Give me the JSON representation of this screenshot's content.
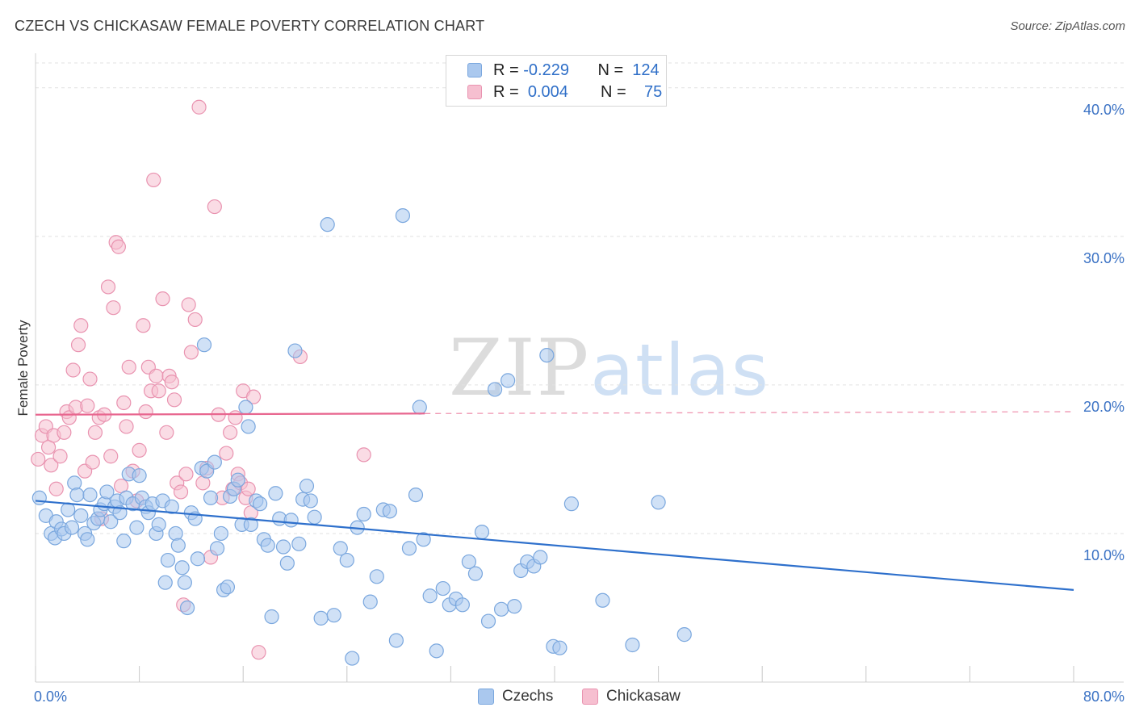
{
  "header": {
    "title": "CZECH VS CHICKASAW FEMALE POVERTY CORRELATION CHART",
    "source": "Source: ZipAtlas.com"
  },
  "watermark": {
    "zip": "ZIP",
    "atlas": "atlas"
  },
  "legend": {
    "rows": [
      {
        "r_label": "R =",
        "r_value": "-0.229",
        "n_label": "N =",
        "n_value": "124"
      },
      {
        "r_label": "R =",
        "r_value": "0.004",
        "n_label": "N =",
        "n_value": "75"
      }
    ]
  },
  "bottom_legend": {
    "czechs": "Czechs",
    "chickasaw": "Chickasaw"
  },
  "colors": {
    "czech_fill": "#aac8ee",
    "czech_stroke": "#7aa7de",
    "czech_line": "#2e70cc",
    "chickasaw_fill": "#f6bfd0",
    "chickasaw_stroke": "#e993b0",
    "chickasaw_line": "#e8668f",
    "tick_text": "#3b72c4",
    "grid": "#e2e2e2"
  },
  "chart_data": {
    "type": "scatter",
    "title": "CZECH VS CHICKASAW FEMALE POVERTY CORRELATION CHART",
    "xlabel": "",
    "ylabel": "Female Poverty",
    "xlim": [
      0,
      80
    ],
    "ylim": [
      0,
      42
    ],
    "x_tick_labels": [
      "0.0%",
      "80.0%"
    ],
    "y_ticks": [
      10,
      20,
      30,
      40
    ],
    "y_tick_labels": [
      "10.0%",
      "20.0%",
      "30.0%",
      "40.0%"
    ],
    "grid": true,
    "legend_position": "top-center",
    "series": [
      {
        "name": "Czechs",
        "r": -0.229,
        "n": 124,
        "trend": {
          "x": [
            0,
            80
          ],
          "y": [
            12.2,
            6.2
          ],
          "dashed_from": null
        },
        "points": [
          [
            0.3,
            12.4
          ],
          [
            0.8,
            11.2
          ],
          [
            1.2,
            10.0
          ],
          [
            1.6,
            10.8
          ],
          [
            1.5,
            9.7
          ],
          [
            2.0,
            10.3
          ],
          [
            2.2,
            10.0
          ],
          [
            2.5,
            11.6
          ],
          [
            2.8,
            10.4
          ],
          [
            3.0,
            13.4
          ],
          [
            3.2,
            12.6
          ],
          [
            3.5,
            11.2
          ],
          [
            3.8,
            10.0
          ],
          [
            4.0,
            9.6
          ],
          [
            4.2,
            12.6
          ],
          [
            4.5,
            10.7
          ],
          [
            4.8,
            11.0
          ],
          [
            5.0,
            11.6
          ],
          [
            5.3,
            12.0
          ],
          [
            5.5,
            12.8
          ],
          [
            5.8,
            10.8
          ],
          [
            6.1,
            11.8
          ],
          [
            6.3,
            12.2
          ],
          [
            6.5,
            11.4
          ],
          [
            6.8,
            9.5
          ],
          [
            7.0,
            12.4
          ],
          [
            7.2,
            14.0
          ],
          [
            7.5,
            12.0
          ],
          [
            7.8,
            10.4
          ],
          [
            8.0,
            13.9
          ],
          [
            8.2,
            12.4
          ],
          [
            8.5,
            11.8
          ],
          [
            8.7,
            11.4
          ],
          [
            9.0,
            12.0
          ],
          [
            9.3,
            10.0
          ],
          [
            9.5,
            10.6
          ],
          [
            9.8,
            12.2
          ],
          [
            10.0,
            6.7
          ],
          [
            10.2,
            8.2
          ],
          [
            10.5,
            11.8
          ],
          [
            10.8,
            10.0
          ],
          [
            11.0,
            9.2
          ],
          [
            11.3,
            7.7
          ],
          [
            11.5,
            6.7
          ],
          [
            11.7,
            5.0
          ],
          [
            12.0,
            11.4
          ],
          [
            12.3,
            11.0
          ],
          [
            12.5,
            8.3
          ],
          [
            12.8,
            14.4
          ],
          [
            13.0,
            22.7
          ],
          [
            13.2,
            14.2
          ],
          [
            13.5,
            12.4
          ],
          [
            13.8,
            14.8
          ],
          [
            14.0,
            9.0
          ],
          [
            14.3,
            10.0
          ],
          [
            14.5,
            6.2
          ],
          [
            14.8,
            6.4
          ],
          [
            15.0,
            12.5
          ],
          [
            15.3,
            13.0
          ],
          [
            15.6,
            13.6
          ],
          [
            15.9,
            10.6
          ],
          [
            16.2,
            18.5
          ],
          [
            16.4,
            17.2
          ],
          [
            16.6,
            10.6
          ],
          [
            17.0,
            12.2
          ],
          [
            17.3,
            12.0
          ],
          [
            17.6,
            9.6
          ],
          [
            17.9,
            9.2
          ],
          [
            18.2,
            4.4
          ],
          [
            18.5,
            12.7
          ],
          [
            18.8,
            11.0
          ],
          [
            19.1,
            9.1
          ],
          [
            19.4,
            8.0
          ],
          [
            19.7,
            10.9
          ],
          [
            20.0,
            22.3
          ],
          [
            20.3,
            9.3
          ],
          [
            20.6,
            12.3
          ],
          [
            20.9,
            13.2
          ],
          [
            21.2,
            12.2
          ],
          [
            21.5,
            11.1
          ],
          [
            22.0,
            4.3
          ],
          [
            22.5,
            30.8
          ],
          [
            23.0,
            4.5
          ],
          [
            23.5,
            9.0
          ],
          [
            24.0,
            8.2
          ],
          [
            24.4,
            1.6
          ],
          [
            24.8,
            10.4
          ],
          [
            25.3,
            11.3
          ],
          [
            25.8,
            5.4
          ],
          [
            26.3,
            7.1
          ],
          [
            26.8,
            11.6
          ],
          [
            27.3,
            11.5
          ],
          [
            27.8,
            2.8
          ],
          [
            28.3,
            31.4
          ],
          [
            28.8,
            9.0
          ],
          [
            29.3,
            12.6
          ],
          [
            29.6,
            18.5
          ],
          [
            29.9,
            9.6
          ],
          [
            30.4,
            5.8
          ],
          [
            30.9,
            2.1
          ],
          [
            31.4,
            6.3
          ],
          [
            31.9,
            5.2
          ],
          [
            32.4,
            5.6
          ],
          [
            32.9,
            5.2
          ],
          [
            33.4,
            8.1
          ],
          [
            33.9,
            7.3
          ],
          [
            34.4,
            10.1
          ],
          [
            34.9,
            4.1
          ],
          [
            35.4,
            19.7
          ],
          [
            35.9,
            4.9
          ],
          [
            36.4,
            20.3
          ],
          [
            36.9,
            5.1
          ],
          [
            37.4,
            7.5
          ],
          [
            37.9,
            8.1
          ],
          [
            38.4,
            7.8
          ],
          [
            38.9,
            8.4
          ],
          [
            39.4,
            22.0
          ],
          [
            39.9,
            2.4
          ],
          [
            40.4,
            2.3
          ],
          [
            41.3,
            12.0
          ],
          [
            43.7,
            5.5
          ],
          [
            46.0,
            2.5
          ],
          [
            48.0,
            12.1
          ],
          [
            50.0,
            3.2
          ]
        ]
      },
      {
        "name": "Chickasaw",
        "r": 0.004,
        "n": 75,
        "trend": {
          "x": [
            0,
            80
          ],
          "y": [
            18.0,
            18.2
          ],
          "dashed_from": 30
        },
        "points": [
          [
            0.2,
            15.0
          ],
          [
            0.5,
            16.6
          ],
          [
            0.8,
            17.2
          ],
          [
            1.0,
            15.8
          ],
          [
            1.2,
            14.6
          ],
          [
            1.4,
            16.6
          ],
          [
            1.6,
            13.0
          ],
          [
            1.9,
            15.2
          ],
          [
            2.2,
            16.8
          ],
          [
            2.4,
            18.2
          ],
          [
            2.6,
            17.8
          ],
          [
            2.9,
            21.0
          ],
          [
            3.1,
            18.5
          ],
          [
            3.3,
            22.7
          ],
          [
            3.5,
            24.0
          ],
          [
            3.8,
            14.2
          ],
          [
            4.0,
            18.6
          ],
          [
            4.2,
            20.4
          ],
          [
            4.4,
            14.8
          ],
          [
            4.6,
            16.8
          ],
          [
            4.9,
            17.8
          ],
          [
            5.1,
            11.0
          ],
          [
            5.3,
            18.0
          ],
          [
            5.6,
            26.6
          ],
          [
            5.8,
            15.2
          ],
          [
            6.0,
            25.2
          ],
          [
            6.2,
            29.6
          ],
          [
            6.4,
            29.3
          ],
          [
            6.6,
            13.2
          ],
          [
            6.8,
            18.8
          ],
          [
            7.0,
            17.2
          ],
          [
            7.2,
            21.2
          ],
          [
            7.5,
            14.2
          ],
          [
            7.8,
            12.2
          ],
          [
            8.0,
            15.6
          ],
          [
            8.3,
            24.0
          ],
          [
            8.5,
            18.2
          ],
          [
            8.7,
            21.2
          ],
          [
            8.9,
            19.6
          ],
          [
            9.1,
            33.8
          ],
          [
            9.3,
            20.6
          ],
          [
            9.5,
            19.6
          ],
          [
            9.8,
            25.8
          ],
          [
            10.1,
            16.8
          ],
          [
            10.3,
            20.6
          ],
          [
            10.5,
            20.2
          ],
          [
            10.7,
            19.0
          ],
          [
            10.9,
            13.4
          ],
          [
            11.2,
            12.8
          ],
          [
            11.4,
            5.2
          ],
          [
            11.6,
            14.0
          ],
          [
            11.8,
            25.4
          ],
          [
            12.0,
            22.2
          ],
          [
            12.3,
            24.4
          ],
          [
            12.6,
            38.7
          ],
          [
            12.9,
            13.4
          ],
          [
            13.2,
            14.4
          ],
          [
            13.5,
            8.4
          ],
          [
            13.8,
            32.0
          ],
          [
            14.1,
            18.0
          ],
          [
            14.4,
            12.4
          ],
          [
            14.7,
            15.4
          ],
          [
            15.0,
            16.8
          ],
          [
            15.2,
            13.0
          ],
          [
            15.4,
            17.8
          ],
          [
            15.6,
            14.0
          ],
          [
            15.8,
            13.4
          ],
          [
            16.0,
            19.6
          ],
          [
            16.2,
            12.4
          ],
          [
            16.4,
            13.0
          ],
          [
            16.6,
            11.4
          ],
          [
            16.8,
            19.2
          ],
          [
            17.2,
            2.0
          ],
          [
            20.4,
            21.9
          ],
          [
            25.3,
            15.3
          ]
        ]
      }
    ]
  }
}
